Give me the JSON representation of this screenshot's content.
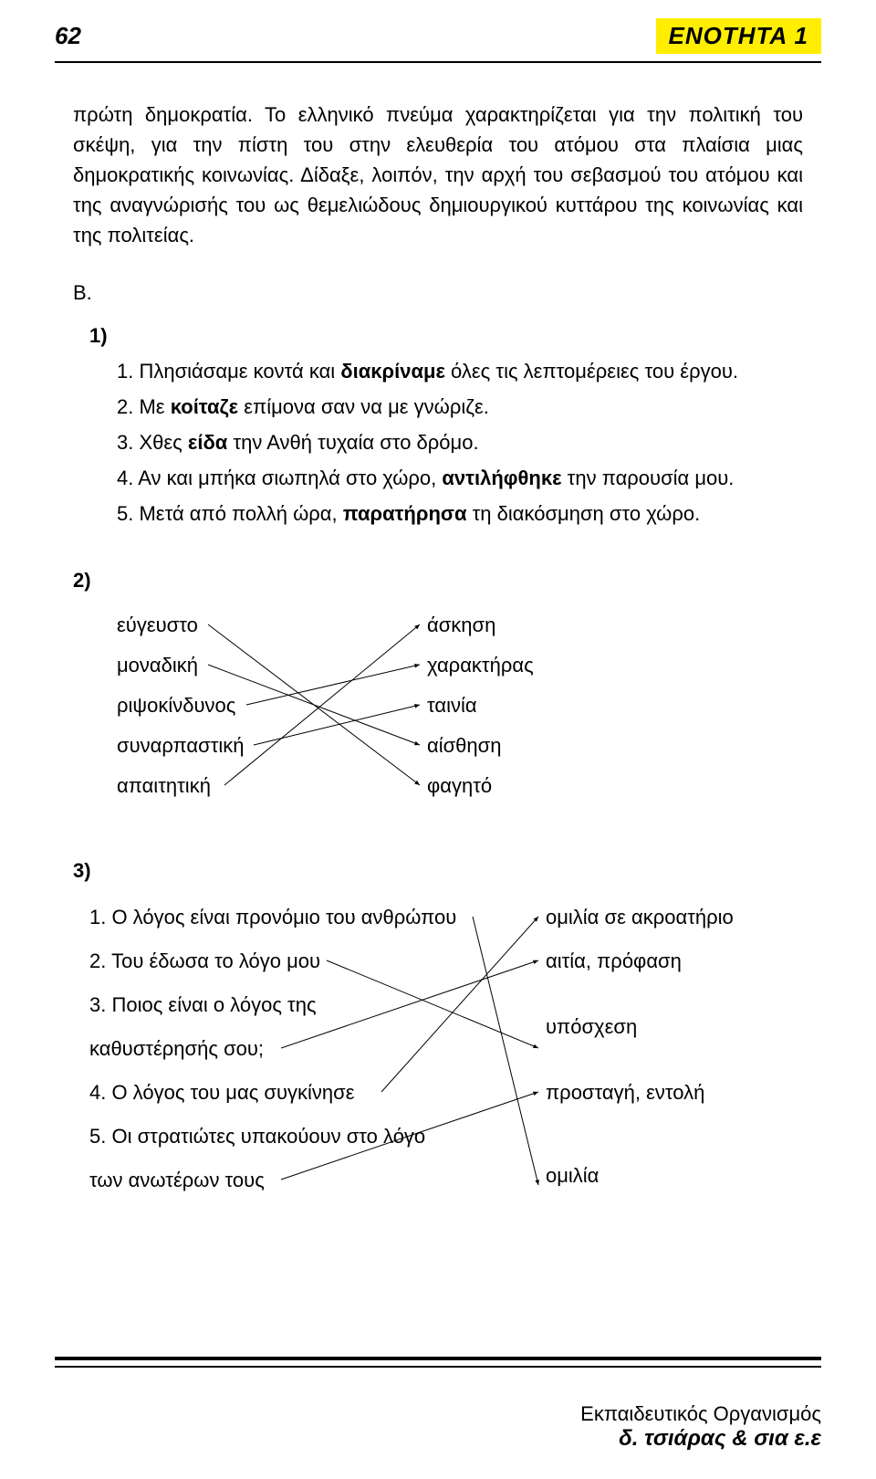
{
  "header": {
    "page_number": "62",
    "unit_label": "ΕΝΟΤΗΤΑ 1"
  },
  "paragraph": "πρώτη δημοκρατία. Το ελληνικό πνεύμα χαρακτηρίζεται για την πολιτική του σκέψη, για την πίστη του στην ελευθερία του ατόμου στα πλαίσια μιας δημοκρατικής κοινωνίας. Δίδαξε, λοιπόν, την αρχή του σεβασμού του ατόμου και της αναγνώρισής του ως θεμελιώδους δημιουργικού κυττάρου της κοινωνίας και της πολιτείας.",
  "section_b": "Β.",
  "q1": {
    "num": "1)",
    "items_pre": [
      "1. Πλησιάσαμε κοντά και ",
      "2. Με ",
      "3. Χθες ",
      "4. Αν και μπήκα σιωπηλά στο χώρο, ",
      "5. Μετά από πολλή ώρα, "
    ],
    "items_bold": [
      "διακρίναμε",
      "κοίταζε",
      "είδα",
      "αντιλήφθηκε",
      "παρατήρησα"
    ],
    "items_post": [
      " όλες τις λεπτομέρειες του έργου.",
      " επίμονα σαν να με γνώριζε.",
      " την Ανθή τυχαία στο δρόμο.",
      " την παρουσία μου.",
      " τη διακόσμηση στο χώρο."
    ]
  },
  "q2": {
    "num": "2)",
    "left": [
      "εύγευστο",
      "μοναδική",
      "ριψοκίνδυνος",
      "συναρπαστική",
      "απαιτητική"
    ],
    "right": [
      "άσκηση",
      "χαρακτήρας",
      "ταινία",
      "αίσθηση",
      "φαγητό"
    ],
    "connections": [
      [
        0,
        4
      ],
      [
        1,
        3
      ],
      [
        2,
        1
      ],
      [
        3,
        2
      ],
      [
        4,
        0
      ]
    ],
    "line_color": "#000000",
    "line_width": 1
  },
  "q3": {
    "num": "3)",
    "left": [
      "1. Ο λόγος είναι προνόμιο του ανθρώπου",
      "2. Του έδωσα το λόγο μου",
      "3. Ποιος είναι ο λόγος της",
      "καθυστέρησής σου;",
      "4. Ο λόγος του μας συγκίνησε",
      "5. Οι στρατιώτες υπακούουν στο λόγο",
      "των ανωτέρων τους"
    ],
    "right": [
      "ομιλία σε ακροατήριο",
      "αιτία, πρόφαση",
      "υπόσχεση",
      "προσταγή, εντολή",
      "ομιλία"
    ],
    "line_color": "#000000",
    "line_width": 1
  },
  "footer": {
    "line1": "Εκπαιδευτικός Οργανισμός",
    "line2": "δ. τσιάρας & σια ε.ε"
  }
}
